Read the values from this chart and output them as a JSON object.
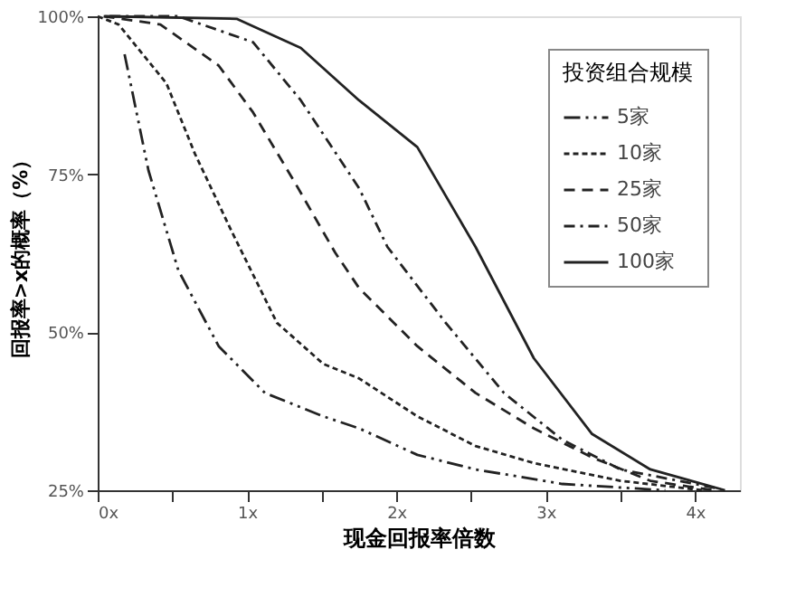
{
  "chart_data": {
    "type": "line",
    "xlabel": "现金回报率倍数",
    "ylabel": "回报率>x的概率（%）",
    "legend_title": "投资组合规模",
    "xlim": [
      0,
      4.3
    ],
    "ylim": [
      25,
      100
    ],
    "xticks": [
      {
        "value": 0,
        "label": "0x"
      },
      {
        "value": 0.5,
        "label": null
      },
      {
        "value": 1,
        "label": "1x"
      },
      {
        "value": 1.5,
        "label": null
      },
      {
        "value": 2,
        "label": "2x"
      },
      {
        "value": 2.5,
        "label": null
      },
      {
        "value": 3,
        "label": "3x"
      },
      {
        "value": 3.5,
        "label": null
      },
      {
        "value": 4,
        "label": "4x"
      }
    ],
    "yticks": [
      {
        "value": 25,
        "label": "25%"
      },
      {
        "value": 50,
        "label": "50%"
      },
      {
        "value": 75,
        "label": "75%"
      },
      {
        "value": 100,
        "label": "100%"
      }
    ],
    "grid": false,
    "legend": "top right",
    "marker": "none",
    "series": [
      {
        "name": "5家",
        "color": "#222222",
        "line_style": "dashdotdot",
        "x": [
          0.18,
          0.34,
          0.54,
          0.81,
          1.12,
          1.51,
          1.75,
          2.14,
          2.53,
          3.11,
          3.8
        ],
        "values": [
          94,
          75.6,
          59.8,
          47.8,
          40.4,
          36.7,
          34.8,
          30.6,
          28.3,
          26,
          25
        ]
      },
      {
        "name": "10家",
        "color": "#222222",
        "line_style": "dotted",
        "x": [
          0,
          0.14,
          0.46,
          0.65,
          0.89,
          1.2,
          1.51,
          1.75,
          2.14,
          2.53,
          2.92,
          3.5,
          4.05
        ],
        "values": [
          100,
          98.7,
          89.4,
          78.3,
          66.3,
          51.5,
          45,
          42.7,
          36.7,
          32,
          29.3,
          26.5,
          25
        ]
      },
      {
        "name": "25家",
        "color": "#222222",
        "line_style": "dashed",
        "x": [
          0.04,
          0.42,
          0.81,
          1.04,
          1.32,
          1.59,
          1.75,
          2.14,
          2.53,
          2.92,
          3.31,
          3.7,
          4.12
        ],
        "values": [
          100,
          98.7,
          92.2,
          84.8,
          73.7,
          62.6,
          57,
          47.8,
          40.4,
          34.8,
          30.2,
          26.5,
          25
        ]
      },
      {
        "name": "50家",
        "color": "#222222",
        "line_style": "dashdot",
        "x": [
          0.08,
          0.54,
          1.04,
          1.36,
          1.75,
          1.94,
          2.33,
          2.72,
          3.11,
          3.5,
          4.17
        ],
        "values": [
          100,
          100,
          95.9,
          86.7,
          72.8,
          63.5,
          51.5,
          40.4,
          33,
          28.3,
          25.2
        ]
      },
      {
        "name": "100家",
        "color": "#222222",
        "line_style": "solid",
        "x": [
          0.05,
          0.93,
          1.36,
          1.75,
          2.14,
          2.53,
          2.92,
          3.31,
          3.7,
          4.2
        ],
        "values": [
          100,
          99.6,
          95,
          86.7,
          79.3,
          63.5,
          45.9,
          33.9,
          28.3,
          25
        ]
      }
    ]
  }
}
